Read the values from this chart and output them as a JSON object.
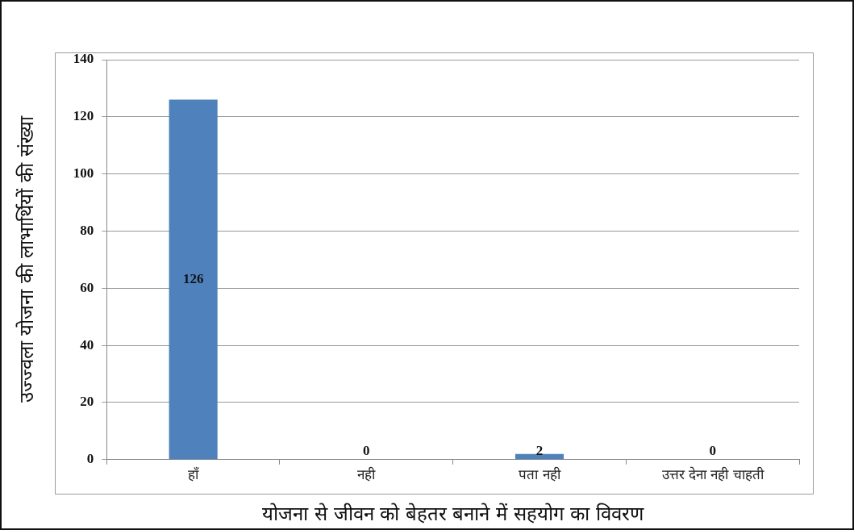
{
  "chart_data": {
    "type": "bar",
    "xlabel": "योजना से जीवन को बेहतर बनाने में सहयोग का विवरण",
    "ylabel": "उज्ज्वला योजना की लाभार्थियों की संख्या",
    "categories": [
      "हाँ",
      "नही",
      "पता नही",
      "उत्तर देना नही चाहती"
    ],
    "values": [
      126,
      0,
      2,
      0
    ],
    "color": "#4f81bd",
    "data_labels": true,
    "ylim": [
      0,
      140
    ],
    "yticks": [
      0,
      20,
      40,
      60,
      80,
      100,
      120,
      140
    ],
    "grid": "y"
  }
}
